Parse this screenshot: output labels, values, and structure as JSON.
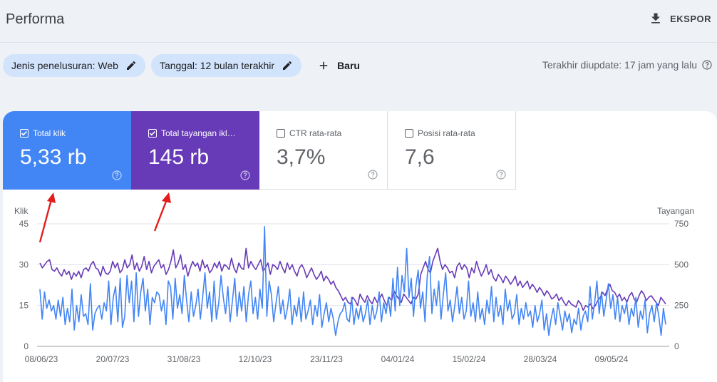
{
  "header": {
    "title": "Performa",
    "export_label": "EKSPOR"
  },
  "filters": {
    "search_type": "Jenis penelusuran: Web",
    "date": "Tanggal: 12 bulan terakhir",
    "new_label": "Baru"
  },
  "last_updated": "Terakhir diupdate: 17 jam yang lalu",
  "metrics": [
    {
      "label": "Total klik",
      "value": "5,33 rb",
      "checked": true,
      "color": "#4285f4"
    },
    {
      "label": "Total tayangan ikl…",
      "value": "145 rb",
      "checked": true,
      "color": "#673ab7"
    },
    {
      "label": "CTR rata-rata",
      "value": "3,7%",
      "checked": false,
      "color": "#ffffff"
    },
    {
      "label": "Posisi rata-rata",
      "value": "7,6",
      "checked": false,
      "color": "#ffffff"
    }
  ],
  "chart_data": {
    "type": "line",
    "left_axis_title": "Klik",
    "right_axis_title": "Tayangan",
    "left_ticks": [
      "0",
      "15",
      "30",
      "45"
    ],
    "right_ticks": [
      "0",
      "250",
      "500",
      "750"
    ],
    "x_tick_labels": [
      "08/06/23",
      "20/07/23",
      "31/08/23",
      "12/10/23",
      "23/11/23",
      "04/01/24",
      "15/02/24",
      "28/03/24",
      "09/05/24"
    ],
    "left_range": [
      0,
      45
    ],
    "right_range": [
      0,
      750
    ],
    "grid": true,
    "series": [
      {
        "axis": "left",
        "color": "#4285f4",
        "values": [
          21,
          10,
          20,
          14,
          17,
          13,
          15,
          10,
          17,
          11,
          18,
          8,
          14,
          9,
          21,
          6,
          15,
          9,
          19,
          11,
          12,
          8,
          23,
          6,
          12,
          14,
          15,
          10,
          16,
          13,
          24,
          8,
          18,
          22,
          9,
          25,
          7,
          11,
          26,
          16,
          24,
          9,
          27,
          11,
          20,
          25,
          13,
          21,
          8,
          18,
          16,
          20,
          19,
          13,
          17,
          8,
          24,
          22,
          10,
          25,
          14,
          19,
          12,
          26,
          17,
          9,
          20,
          11,
          15,
          21,
          10,
          18,
          27,
          14,
          20,
          9,
          24,
          10,
          16,
          26,
          18,
          12,
          22,
          9,
          17,
          25,
          11,
          20,
          13,
          22,
          9,
          19,
          24,
          12,
          18,
          10,
          21,
          14,
          44,
          11,
          24,
          19,
          9,
          16,
          22,
          12,
          17,
          10,
          14,
          21,
          8,
          15,
          11,
          18,
          9,
          20,
          10,
          13,
          17,
          8,
          15,
          11,
          19,
          7,
          12,
          16,
          9,
          14,
          10,
          4,
          9,
          12,
          13,
          16,
          10,
          9,
          18,
          8,
          14,
          10,
          15,
          9,
          12,
          17,
          8,
          15,
          10,
          13,
          20,
          9,
          16,
          12,
          18,
          11,
          25,
          13,
          29,
          15,
          26,
          20,
          36,
          18,
          25,
          11,
          22,
          28,
          14,
          20,
          9,
          26,
          33,
          12,
          21,
          15,
          24,
          10,
          19,
          27,
          13,
          17,
          9,
          15,
          22,
          12,
          18,
          10,
          13,
          24,
          11,
          16,
          9,
          20,
          10,
          14,
          8,
          17,
          12,
          22,
          9,
          18,
          11,
          15,
          8,
          21,
          13,
          17,
          10,
          12,
          19,
          8,
          14,
          10,
          16,
          11,
          13,
          7,
          15,
          9,
          12,
          17,
          6,
          12,
          4,
          10,
          14,
          8,
          16,
          11,
          6,
          13,
          9,
          12,
          5,
          10,
          8,
          14,
          6,
          11,
          13,
          9,
          22,
          10,
          16,
          24,
          12,
          20,
          11,
          17,
          23,
          14,
          19,
          10,
          18,
          9,
          15,
          12,
          16,
          8,
          14,
          11,
          18,
          7,
          13,
          10,
          17,
          5,
          12,
          15,
          9,
          16,
          11,
          4,
          14,
          8
        ]
      },
      {
        "axis": "right",
        "color": "#673ab7",
        "values": [
          510,
          480,
          500,
          520,
          530,
          470,
          460,
          480,
          450,
          430,
          470,
          440,
          460,
          410,
          450,
          430,
          460,
          420,
          470,
          480,
          460,
          500,
          520,
          480,
          470,
          430,
          490,
          450,
          440,
          460,
          520,
          480,
          510,
          450,
          470,
          530,
          480,
          500,
          560,
          470,
          510,
          460,
          490,
          550,
          470,
          520,
          450,
          490,
          510,
          530,
          480,
          500,
          440,
          470,
          520,
          590,
          480,
          510,
          560,
          470,
          500,
          430,
          480,
          520,
          490,
          510,
          460,
          530,
          480,
          500,
          450,
          470,
          510,
          480,
          520,
          460,
          500,
          490,
          470,
          540,
          480,
          450,
          510,
          480,
          470,
          600,
          480,
          520,
          490,
          470,
          500,
          530,
          460,
          480,
          510,
          440,
          500,
          490,
          470,
          520,
          480,
          450,
          510,
          470,
          500,
          460,
          430,
          480,
          500,
          470,
          420,
          450,
          480,
          440,
          410,
          430,
          460,
          400,
          430,
          410,
          380,
          400,
          360,
          340,
          310,
          280,
          300,
          270,
          260,
          300,
          280,
          250,
          320,
          290,
          270,
          310,
          280,
          260,
          300,
          270,
          290,
          320,
          280,
          250,
          300,
          280,
          340,
          310,
          290,
          270,
          320,
          300,
          280,
          260,
          300,
          290,
          320,
          440,
          480,
          520,
          470,
          450,
          520,
          560,
          600,
          520,
          470,
          500,
          480,
          450,
          460,
          420,
          490,
          510,
          470,
          500,
          480,
          420,
          480,
          450,
          520,
          470,
          430,
          460,
          500,
          440,
          470,
          420,
          400,
          440,
          420,
          390,
          430,
          410,
          380,
          400,
          430,
          370,
          400,
          360,
          380,
          400,
          350,
          380,
          360,
          330,
          360,
          340,
          310,
          340,
          320,
          290,
          300,
          320,
          280,
          300,
          270,
          250,
          280,
          260,
          250,
          240,
          280,
          260,
          220,
          250,
          240,
          260,
          230,
          250,
          280,
          300,
          330,
          310,
          350,
          380,
          340,
          330,
          300,
          320,
          280,
          300,
          270,
          310,
          330,
          290,
          270,
          310,
          340,
          320,
          280,
          300,
          310,
          290,
          270,
          250,
          300,
          280,
          260
        ]
      }
    ]
  }
}
